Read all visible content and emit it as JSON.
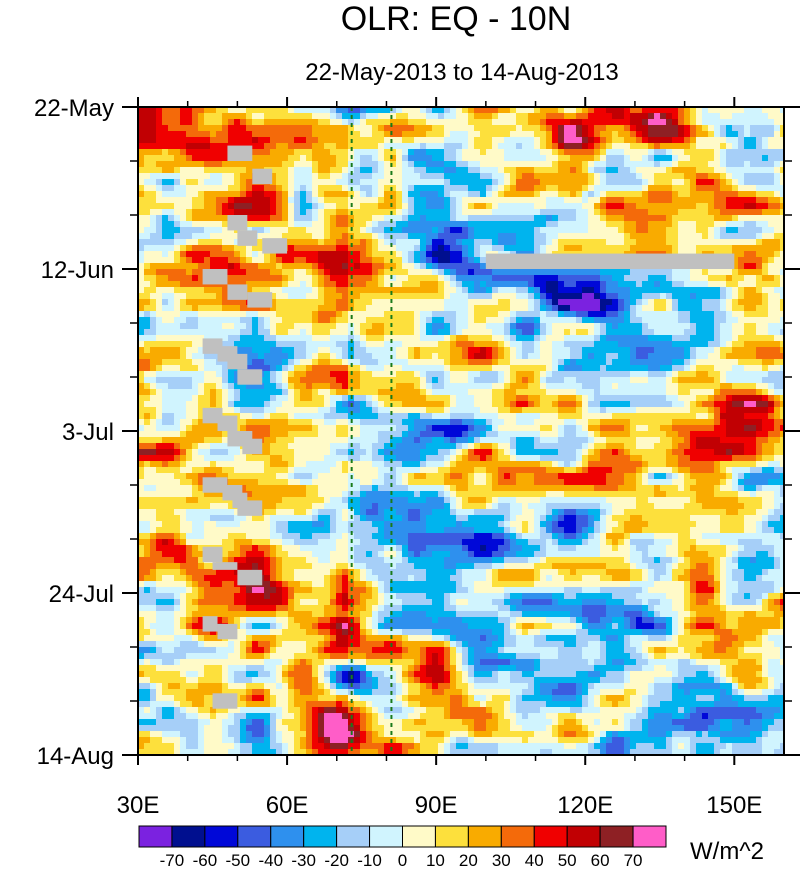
{
  "chart_data": {
    "type": "heatmap",
    "title": "OLR: EQ - 10N",
    "subtitle": "22-May-2013 to 14-Aug-2013",
    "x_axis": {
      "min_deg": 30,
      "max_deg": 160,
      "ticks": [
        {
          "value": 30,
          "label": "30E"
        },
        {
          "value": 60,
          "label": "60E"
        },
        {
          "value": 90,
          "label": "90E"
        },
        {
          "value": 120,
          "label": "120E"
        },
        {
          "value": 150,
          "label": "150E"
        }
      ],
      "minor_ticks": [
        40,
        50,
        70,
        80,
        100,
        110,
        130,
        140
      ]
    },
    "y_axis": {
      "days_total": 84,
      "ticks": [
        {
          "day": 0,
          "label": "22-May"
        },
        {
          "day": 21,
          "label": "12-Jun"
        },
        {
          "day": 42,
          "label": "3-Jul"
        },
        {
          "day": 63,
          "label": "24-Jul"
        },
        {
          "day": 84,
          "label": "14-Aug"
        }
      ],
      "minor_ticks": [
        7,
        14,
        28,
        35,
        49,
        56,
        70,
        77
      ]
    },
    "reference_lines_deg": [
      73,
      81
    ],
    "colorbar": {
      "levels": [
        -70,
        -60,
        -50,
        -40,
        -30,
        -20,
        -10,
        0,
        10,
        20,
        30,
        40,
        50,
        60,
        70
      ],
      "labels": [
        "-70",
        "-60",
        "-50",
        "-40",
        "-30",
        "-20",
        "-10",
        "0",
        "10",
        "20",
        "30",
        "40",
        "50",
        "60",
        "70"
      ],
      "colors": [
        "#7b22e0",
        "#000f8f",
        "#0008d8",
        "#3b5ce0",
        "#2e90ee",
        "#00b4ee",
        "#a6cff8",
        "#d0f4fe",
        "#fffac8",
        "#fde03c",
        "#f9ab00",
        "#f46a0a",
        "#f00000",
        "#c10003",
        "#8e2024",
        "#ff5dc8"
      ],
      "unit": "W/m^2"
    },
    "missing_color": "#c0c0c0",
    "missing_data": [
      {
        "lon0": 48,
        "lon1": 53,
        "day0": 5,
        "day1": 7
      },
      {
        "lon0": 53,
        "lon1": 57,
        "day0": 8,
        "day1": 10
      },
      {
        "lon0": 48,
        "lon1": 52,
        "day0": 14,
        "day1": 16
      },
      {
        "lon0": 50,
        "lon1": 54,
        "day0": 16,
        "day1": 18
      },
      {
        "lon0": 55,
        "lon1": 60,
        "day0": 17,
        "day1": 19
      },
      {
        "lon0": 43,
        "lon1": 48,
        "day0": 21,
        "day1": 23
      },
      {
        "lon0": 48,
        "lon1": 52,
        "day0": 23,
        "day1": 25
      },
      {
        "lon0": 52,
        "lon1": 57,
        "day0": 24,
        "day1": 26
      },
      {
        "lon0": 43,
        "lon1": 47,
        "day0": 30,
        "day1": 32
      },
      {
        "lon0": 46,
        "lon1": 50,
        "day0": 31,
        "day1": 33
      },
      {
        "lon0": 48,
        "lon1": 52,
        "day0": 32,
        "day1": 34
      },
      {
        "lon0": 50,
        "lon1": 55,
        "day0": 34,
        "day1": 36
      },
      {
        "lon0": 43,
        "lon1": 47,
        "day0": 39,
        "day1": 41
      },
      {
        "lon0": 46,
        "lon1": 50,
        "day0": 40,
        "day1": 42
      },
      {
        "lon0": 48,
        "lon1": 53,
        "day0": 42,
        "day1": 44
      },
      {
        "lon0": 51,
        "lon1": 55,
        "day0": 43,
        "day1": 45
      },
      {
        "lon0": 43,
        "lon1": 48,
        "day0": 48,
        "day1": 50
      },
      {
        "lon0": 47,
        "lon1": 51,
        "day0": 49,
        "day1": 51
      },
      {
        "lon0": 49,
        "lon1": 52,
        "day0": 50,
        "day1": 52
      },
      {
        "lon0": 50,
        "lon1": 55,
        "day0": 51,
        "day1": 53
      },
      {
        "lon0": 43,
        "lon1": 47,
        "day0": 57,
        "day1": 59
      },
      {
        "lon0": 45,
        "lon1": 50,
        "day0": 59,
        "day1": 60
      },
      {
        "lon0": 50,
        "lon1": 55,
        "day0": 60,
        "day1": 62
      },
      {
        "lon0": 43,
        "lon1": 46,
        "day0": 66,
        "day1": 68
      },
      {
        "lon0": 46,
        "lon1": 50,
        "day0": 67,
        "day1": 69
      },
      {
        "lon0": 45,
        "lon1": 50,
        "day0": 76,
        "day1": 78
      },
      {
        "lon0": 100,
        "lon1": 150,
        "day0": 19,
        "day1": 21
      }
    ]
  }
}
